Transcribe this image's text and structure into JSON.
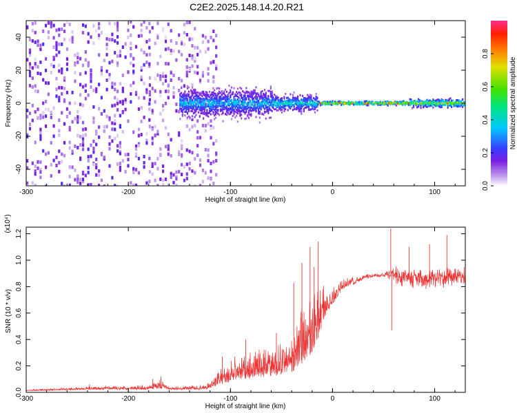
{
  "title": "C2E2.2025.148.14.20.R21",
  "chart_data": [
    {
      "type": "heatmap",
      "name": "spectrogram",
      "xlabel": "Height of straight line (km)",
      "ylabel": "Frequency (Hz)",
      "xlim": [
        -300,
        130
      ],
      "ylim": [
        -50,
        50
      ],
      "xticks": [
        -300,
        -200,
        -100,
        0,
        100
      ],
      "xtick_labels": [
        "-300",
        "-200",
        "-100",
        "0",
        "100"
      ],
      "yticks": [
        -40,
        -20,
        0,
        20,
        40
      ],
      "ytick_labels": [
        "-40",
        "-20",
        "0",
        "20",
        "40"
      ],
      "colorbar": {
        "label": "Normalized spectral amplitude",
        "range": [
          0,
          1
        ],
        "ticks": [
          0.0,
          0.2,
          0.4,
          0.6,
          0.8
        ],
        "tick_labels": [
          "0.0",
          "0.2",
          "0.4",
          "0.6",
          "0.8"
        ],
        "colors": [
          "#ffffff",
          "#c8a8f0",
          "#7a1fe0",
          "#3a3aff",
          "#00c8ff",
          "#00e680",
          "#40e000",
          "#e0e000",
          "#ff8000",
          "#ff2000",
          "#ff3090"
        ]
      },
      "regions": [
        {
          "x_range": [
            -300,
            -180
          ],
          "f_spread": 50,
          "amplitude": 0.15,
          "description": "broadband noise"
        },
        {
          "x_range": [
            -180,
            -115
          ],
          "f_spread": 50,
          "amplitude": 0.12,
          "description": "broadband noise"
        },
        {
          "x_range": [
            -150,
            -60
          ],
          "f_spread": 9,
          "amplitude": 0.35
        },
        {
          "x_range": [
            -60,
            -15
          ],
          "f_spread": 5,
          "amplitude": 0.45
        },
        {
          "x_range": [
            -15,
            75
          ],
          "f_spread": 1.2,
          "amplitude": 0.95
        },
        {
          "x_range": [
            75,
            130
          ],
          "f_spread": 2.5,
          "amplitude": 0.75
        }
      ]
    },
    {
      "type": "line",
      "name": "snr",
      "xlabel": "Height of straight line (km)",
      "ylabel": "SNR (10 * v/v)",
      "scale_label": "(x10⁴)",
      "xlim": [
        -300,
        130
      ],
      "ylim": [
        0,
        1.25
      ],
      "xticks": [
        -300,
        -200,
        -100,
        0,
        100
      ],
      "xtick_labels": [
        "-300",
        "-200",
        "-100",
        "0",
        "100"
      ],
      "yticks": [
        0.0,
        0.2,
        0.4,
        0.6,
        0.8,
        1.0,
        1.2
      ],
      "ytick_labels": [
        "0.0",
        "0.2",
        "0.4",
        "0.6",
        "0.8",
        "1.0",
        "1.2"
      ],
      "color": "#ee3333",
      "envelope": [
        {
          "x": -300,
          "base": 0.01,
          "noise": 0.01
        },
        {
          "x": -240,
          "base": 0.02,
          "noise": 0.02
        },
        {
          "x": -180,
          "base": 0.02,
          "noise": 0.03
        },
        {
          "x": -170,
          "base": 0.03,
          "noise": 0.06
        },
        {
          "x": -160,
          "base": 0.02,
          "noise": 0.02
        },
        {
          "x": -125,
          "base": 0.02,
          "noise": 0.03
        },
        {
          "x": -110,
          "base": 0.06,
          "noise": 0.1
        },
        {
          "x": -90,
          "base": 0.1,
          "noise": 0.16
        },
        {
          "x": -60,
          "base": 0.12,
          "noise": 0.2
        },
        {
          "x": -40,
          "base": 0.15,
          "noise": 0.22
        },
        {
          "x": -30,
          "base": 0.22,
          "noise": 0.35
        },
        {
          "x": -20,
          "base": 0.3,
          "noise": 0.45
        },
        {
          "x": -12,
          "base": 0.45,
          "noise": 0.35
        },
        {
          "x": -5,
          "base": 0.6,
          "noise": 0.15
        },
        {
          "x": 10,
          "base": 0.78,
          "noise": 0.06
        },
        {
          "x": 30,
          "base": 0.87,
          "noise": 0.03
        },
        {
          "x": 50,
          "base": 0.89,
          "noise": 0.03
        },
        {
          "x": 57,
          "base": 0.9,
          "noise": 0.12
        },
        {
          "x": 65,
          "base": 0.86,
          "noise": 0.14
        },
        {
          "x": 90,
          "base": 0.85,
          "noise": 0.14
        },
        {
          "x": 130,
          "base": 0.88,
          "noise": 0.12
        }
      ],
      "spikes": [
        {
          "x": -238,
          "y": 0.06
        },
        {
          "x": -176,
          "y": 0.1
        },
        {
          "x": -168,
          "y": 0.12
        },
        {
          "x": -108,
          "y": 0.27
        },
        {
          "x": -85,
          "y": 0.4
        },
        {
          "x": -55,
          "y": 0.45
        },
        {
          "x": -38,
          "y": 0.83
        },
        {
          "x": -30,
          "y": 0.98
        },
        {
          "x": -22,
          "y": 1.1
        },
        {
          "x": -18,
          "y": 0.95
        },
        {
          "x": -14,
          "y": 1.14
        },
        {
          "x": 57,
          "y": 1.24
        },
        {
          "x": 58,
          "y": 0.47
        },
        {
          "x": 75,
          "y": 1.1
        },
        {
          "x": 95,
          "y": 1.12
        },
        {
          "x": 112,
          "y": 1.19
        }
      ]
    }
  ]
}
